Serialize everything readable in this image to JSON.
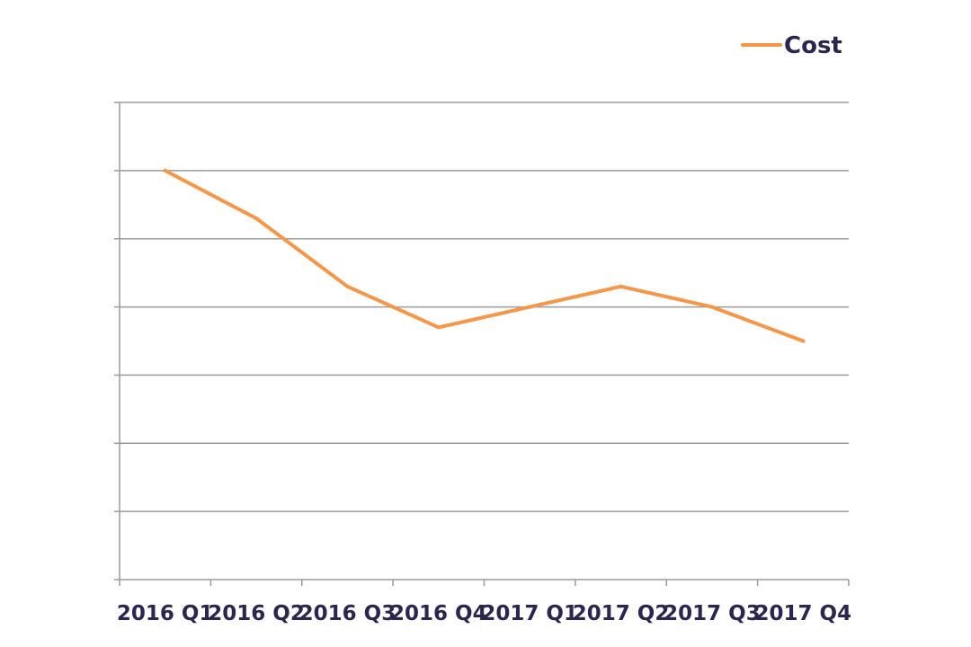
{
  "chart_data": {
    "type": "line",
    "categories": [
      "2016 Q1",
      "2016 Q2",
      "2016 Q3",
      "2016 Q4",
      "2017 Q1",
      "2017 Q2",
      "2017 Q3",
      "2017 Q4"
    ],
    "series": [
      {
        "name": "Cost",
        "color": "#f79646",
        "values": [
          6.0,
          5.3,
          4.3,
          3.7,
          4.0,
          4.3,
          4.0,
          3.5
        ]
      }
    ],
    "ylim": [
      0,
      7
    ],
    "grid": true,
    "legend_position": "top-right",
    "y_tick_labels_visible": false
  }
}
